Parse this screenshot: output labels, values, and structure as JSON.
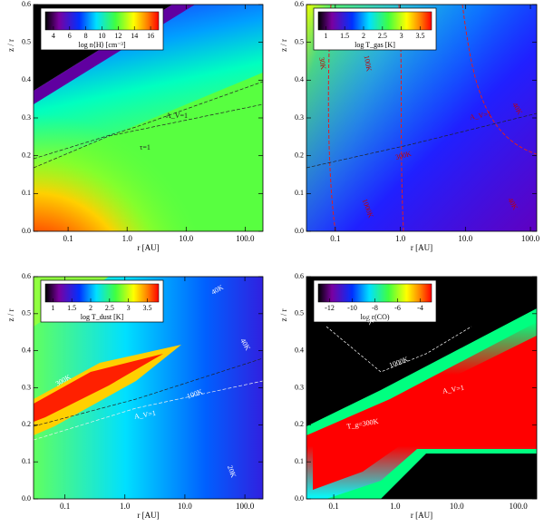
{
  "chart_data": [
    {
      "type": "contour",
      "xlabel": "r [AU]",
      "ylabel": "z / r",
      "xscale": "log",
      "xlim": [
        0.026,
        200
      ],
      "xticks": [
        0.1,
        {
          "value": 1,
          "label": "1.0"
        },
        {
          "value": 10,
          "label": "10.0"
        },
        {
          "value": 100,
          "label": "100.0"
        }
      ],
      "ylim": [
        0,
        0.6
      ],
      "yticks": [
        {
          "value": 0,
          "label": "0.0"
        },
        0.1,
        0.2,
        0.3,
        0.4,
        0.5,
        0.6
      ],
      "colorbar": {
        "label": "log n⟨H⟩ [cm⁻³]",
        "lim": [
          3,
          17
        ],
        "ticks": [
          4,
          6,
          8,
          10,
          12,
          14,
          16
        ]
      },
      "annotations": [
        "A_V=1",
        "τ=1"
      ]
    },
    {
      "type": "contour",
      "xlabel": "r [AU]",
      "ylabel": "z / r",
      "xscale": "log",
      "xlim": [
        0.036,
        125
      ],
      "xticks": [
        0.1,
        {
          "value": 1,
          "label": "1.0"
        },
        {
          "value": 10,
          "label": "10.0"
        },
        {
          "value": 100,
          "label": "100.0"
        }
      ],
      "ylim": [
        0,
        0.6
      ],
      "yticks": [
        {
          "value": 0,
          "label": "0.0"
        },
        0.1,
        0.2,
        0.3,
        0.4,
        0.5,
        0.6
      ],
      "colorbar": {
        "label": "log T_gas [K]",
        "lim": [
          0.8,
          3.8
        ],
        "ticks": [
          1.0,
          1.5,
          2.0,
          2.5,
          3.0,
          3.5
        ]
      },
      "annotations": [
        "100K",
        "30K",
        "A_V=1",
        "300K",
        "1000K",
        "40K",
        "40K"
      ]
    },
    {
      "type": "contour",
      "xlabel": "r [AU]",
      "ylabel": "z / r",
      "xscale": "log",
      "xlim": [
        0.03,
        200
      ],
      "xticks": [
        0.1,
        {
          "value": 1,
          "label": "1.0"
        },
        {
          "value": 10,
          "label": "10.0"
        },
        {
          "value": 100,
          "label": "100.0"
        }
      ],
      "ylim": [
        0,
        0.6
      ],
      "yticks": [
        {
          "value": 0,
          "label": "0.0"
        },
        0.1,
        0.2,
        0.3,
        0.4,
        0.5,
        0.6
      ],
      "colorbar": {
        "label": "log T_dust [K]",
        "lim": [
          0.8,
          3.8
        ],
        "ticks": [
          1.0,
          1.5,
          2.0,
          2.5,
          3.0,
          3.5
        ]
      },
      "annotations": [
        "40K",
        "100K",
        "300K",
        "A_V=1",
        "40K",
        "20K"
      ]
    },
    {
      "type": "contour",
      "xlabel": "r [AU]",
      "ylabel": "z / r",
      "xscale": "log",
      "xlim": [
        0.036,
        200
      ],
      "xticks": [
        0.1,
        {
          "value": 1,
          "label": "1.0"
        },
        {
          "value": 10,
          "label": "10.0"
        },
        {
          "value": 100,
          "label": "100.0"
        }
      ],
      "ylim": [
        0,
        0.6
      ],
      "yticks": [
        {
          "value": 0,
          "label": "0.0"
        },
        0.1,
        0.2,
        0.3,
        0.4,
        0.5,
        0.6
      ],
      "colorbar": {
        "label": "log ε(CO)",
        "lim": [
          -13,
          -3
        ],
        "ticks": [
          -12,
          -10,
          -8,
          -6,
          -4
        ]
      },
      "annotations": [
        "300K",
        "1000K",
        "A_V=1",
        "T_g=300K"
      ]
    }
  ]
}
